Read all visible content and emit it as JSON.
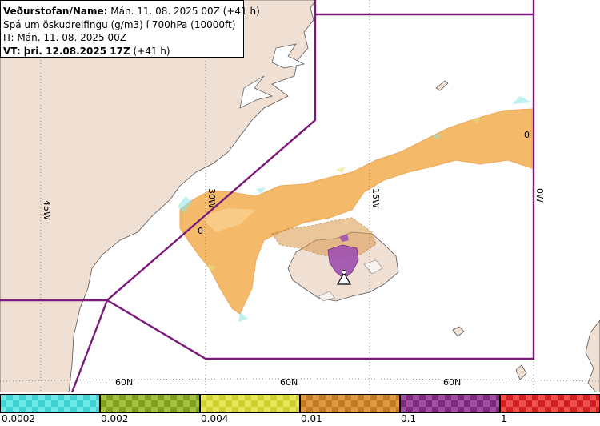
{
  "info": {
    "line1_label": "Veðurstofan/Name:",
    "line1_value": " Mán. 11. 08. 2025 00Z (+41 h)",
    "line2": "Spá um öskudreifingu (g/m3) í 700hPa (10000ft)",
    "line3": "IT: Mán. 11. 08. 2025 00Z",
    "line4_label": "VT: þri. 12.08.2025 17Z",
    "line4_value": " (+41 h)"
  },
  "map": {
    "meridians": [
      "45W",
      "30W",
      "15W",
      "0W"
    ],
    "parallels": [
      "60N",
      "60N",
      "60N"
    ],
    "zero_marks": [
      "0",
      "0"
    ],
    "colors": {
      "land": "#f0dfd3",
      "sea": "#ffffff",
      "fir_boundary": "#7a1a7a",
      "ash_orange": "#f5b25a",
      "ash_light": "#f9cf8e",
      "ash_dark": "#c98a3a",
      "ash_purple": "#a050b0",
      "ash_cyan": "#88e8e8",
      "ash_yellowgreen": "#e2e27a"
    }
  },
  "legend": {
    "bins": [
      {
        "color": "#3dd3d3",
        "check": "#6fe7e7"
      },
      {
        "color": "#7f9f1f",
        "check": "#a6bf3f"
      },
      {
        "color": "#cfcf2f",
        "check": "#e6e65a"
      },
      {
        "color": "#c07a22",
        "check": "#e09a42"
      },
      {
        "color": "#7a2a7a",
        "check": "#a050a0"
      },
      {
        "color": "#d02020",
        "check": "#ee5050"
      }
    ],
    "labels": [
      "0.0002",
      "0.002",
      "0.004",
      "0.01",
      "0.1",
      "1"
    ]
  }
}
